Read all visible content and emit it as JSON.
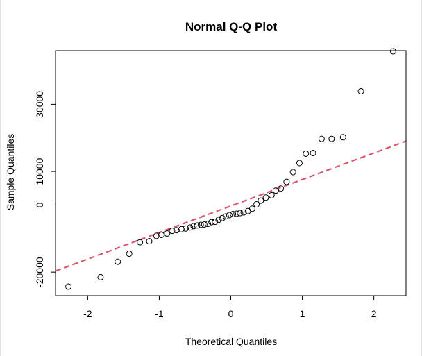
{
  "chart_data": {
    "type": "scatter",
    "title": "Normal Q-Q Plot",
    "xlabel": "Theoretical Quantiles",
    "ylabel": "Sample Quantiles",
    "xlim": [
      -2.45,
      2.45
    ],
    "ylim": [
      -27000,
      46000
    ],
    "x_ticks": [
      -2,
      -1,
      0,
      1,
      2
    ],
    "x_tick_labels": [
      "-2",
      "-1",
      "0",
      "1",
      "2"
    ],
    "y_ticks": [
      -20000,
      0,
      10000,
      30000
    ],
    "y_tick_labels": [
      "-20000",
      "0",
      "10000",
      "30000"
    ],
    "points": [
      [
        -2.27,
        -24300
      ],
      [
        -1.82,
        -21500
      ],
      [
        -1.58,
        -16900
      ],
      [
        -1.42,
        -14500
      ],
      [
        -1.27,
        -11100
      ],
      [
        -1.14,
        -10800
      ],
      [
        -1.04,
        -9200
      ],
      [
        -0.97,
        -8900
      ],
      [
        -0.89,
        -8500
      ],
      [
        -0.82,
        -7700
      ],
      [
        -0.76,
        -7500
      ],
      [
        -0.69,
        -7200
      ],
      [
        -0.63,
        -7000
      ],
      [
        -0.57,
        -6700
      ],
      [
        -0.52,
        -6300
      ],
      [
        -0.47,
        -6100
      ],
      [
        -0.42,
        -5900
      ],
      [
        -0.37,
        -5800
      ],
      [
        -0.32,
        -5600
      ],
      [
        -0.27,
        -5100
      ],
      [
        -0.22,
        -5000
      ],
      [
        -0.17,
        -4400
      ],
      [
        -0.12,
        -3900
      ],
      [
        -0.07,
        -3400
      ],
      [
        -0.02,
        -3000
      ],
      [
        0.03,
        -2700
      ],
      [
        0.08,
        -2600
      ],
      [
        0.13,
        -2400
      ],
      [
        0.18,
        -2200
      ],
      [
        0.24,
        -1800
      ],
      [
        0.3,
        -1100
      ],
      [
        0.36,
        200
      ],
      [
        0.42,
        1300
      ],
      [
        0.49,
        2200
      ],
      [
        0.57,
        2900
      ],
      [
        0.63,
        4300
      ],
      [
        0.7,
        4900
      ],
      [
        0.78,
        6900
      ],
      [
        0.87,
        9800
      ],
      [
        0.96,
        12500
      ],
      [
        1.05,
        15300
      ],
      [
        1.15,
        15500
      ],
      [
        1.27,
        19700
      ],
      [
        1.41,
        19700
      ],
      [
        1.57,
        20200
      ],
      [
        1.82,
        33900
      ],
      [
        2.27,
        45800
      ]
    ],
    "reference_line": {
      "intercept": -300,
      "slope": 7900,
      "color": "#DF536B",
      "style": "dashed"
    },
    "grid": false,
    "point_marker": "open-circle",
    "point_color": "#000000"
  }
}
